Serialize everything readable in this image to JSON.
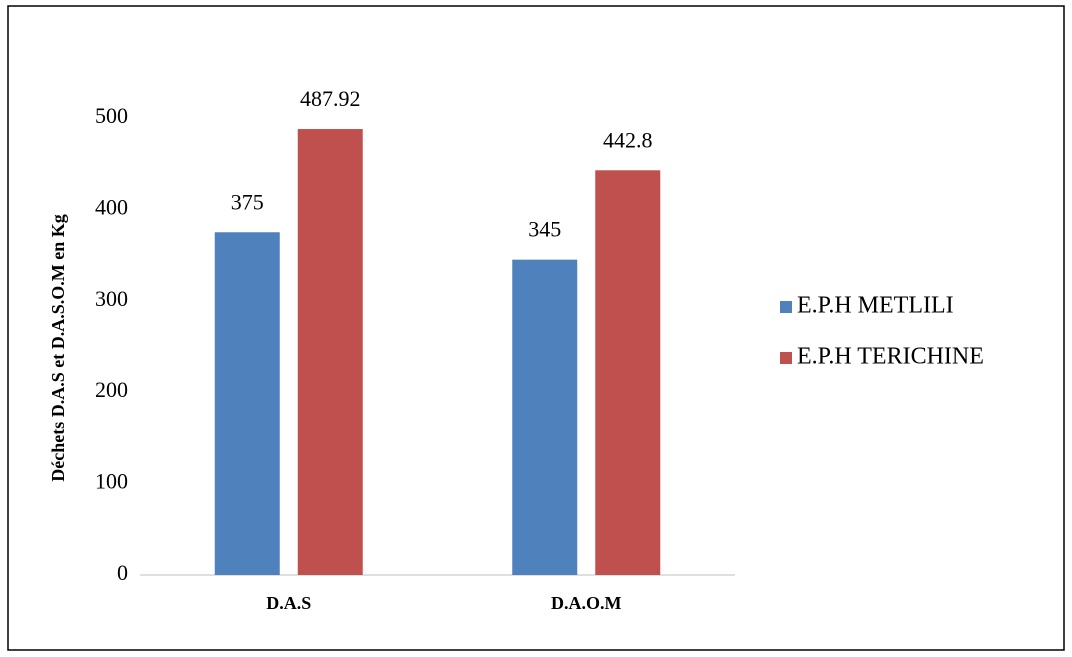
{
  "chart_data": {
    "type": "bar",
    "categories": [
      "D.A.S",
      "D.A.O.M"
    ],
    "series": [
      {
        "name": "E.P.H METLILI",
        "color": "#4f81bd",
        "values": [
          375,
          345
        ]
      },
      {
        "name": "E.P.H TERICHINE",
        "color": "#c0504d",
        "values": [
          487.92,
          442.8
        ]
      }
    ],
    "y_label": "Déchets D.A.S et D.A.S.O.M en Kg",
    "ylim": [
      0,
      500
    ],
    "yticks": [
      0,
      100,
      200,
      300,
      400,
      500
    ],
    "grid": false,
    "legend": "right",
    "data_labels": true
  }
}
